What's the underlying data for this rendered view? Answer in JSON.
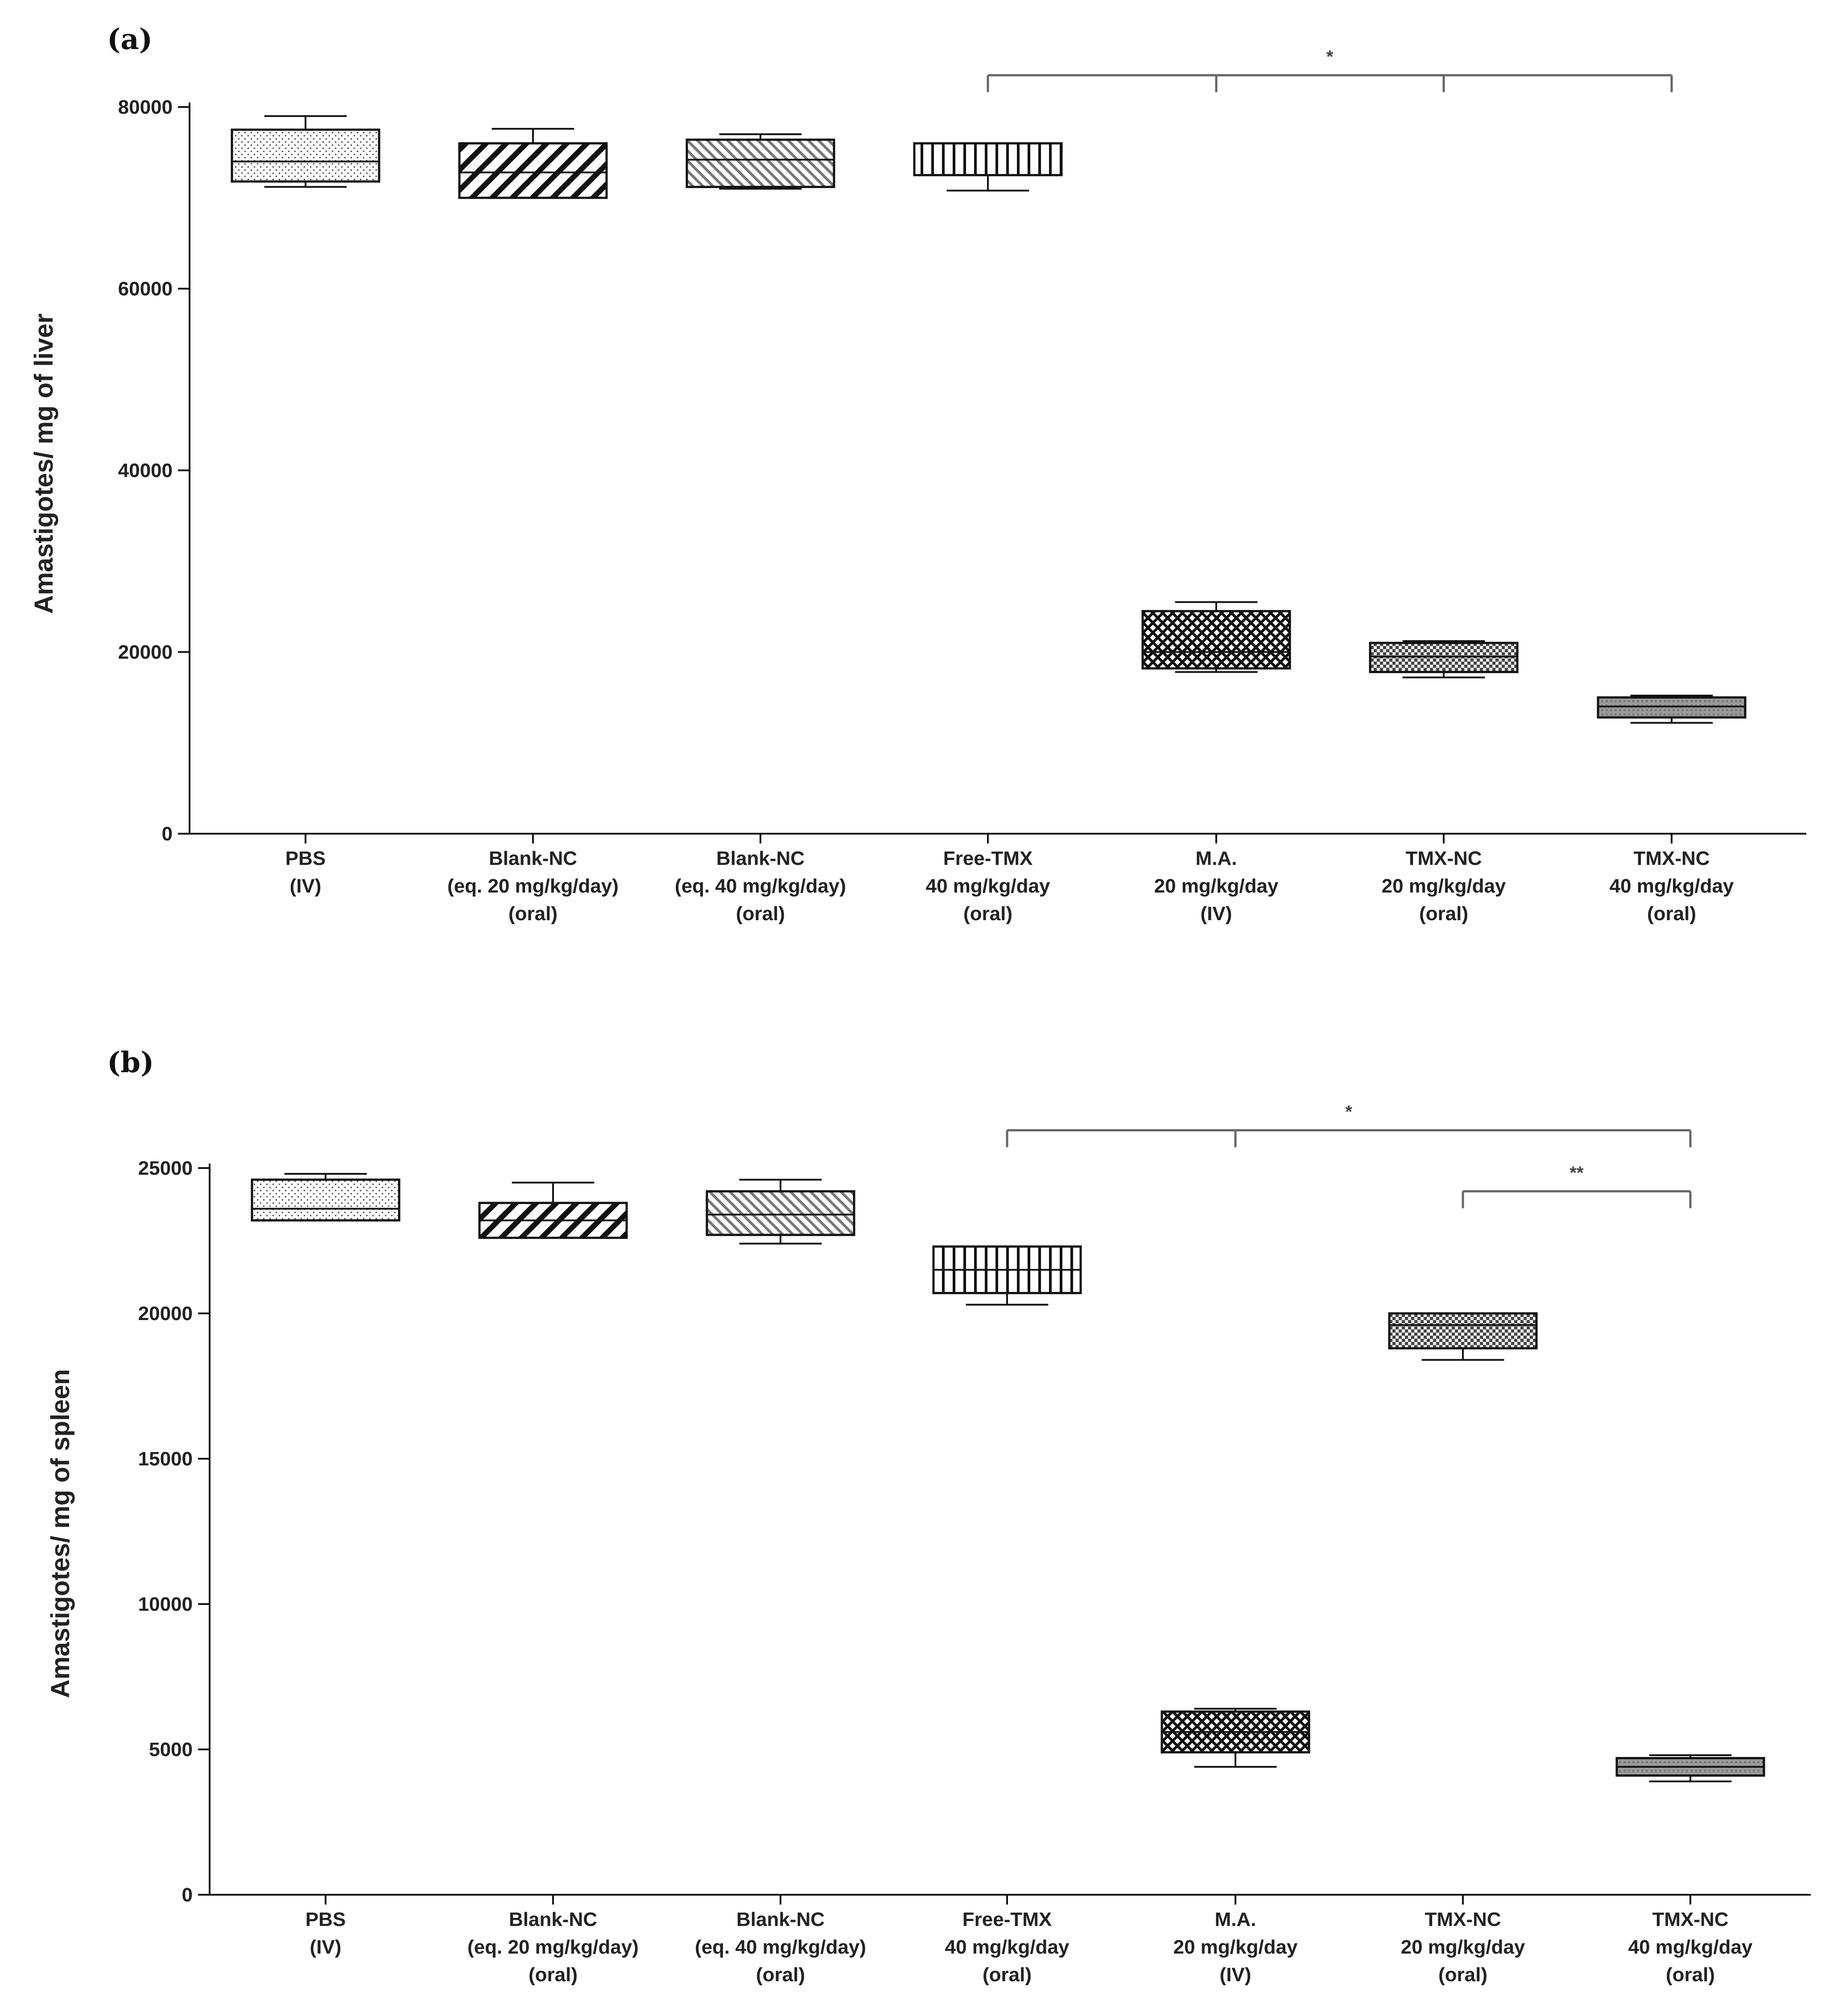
{
  "figure": {
    "background": "#ffffff",
    "ink_color": "#111111",
    "bracket_color": "#666666"
  },
  "chart_data": [
    {
      "type": "box",
      "panel": "(a)",
      "ylabel": "Amastigotes/ mg of liver",
      "xlabel": "",
      "ylim": [
        0,
        80000
      ],
      "yticks": [
        0,
        20000,
        40000,
        60000,
        80000
      ],
      "categories": [
        [
          "PBS",
          "(IV)"
        ],
        [
          "Blank-NC",
          "(eq. 20 mg/kg/day)",
          "(oral)"
        ],
        [
          "Blank-NC",
          "(eq. 40 mg/kg/day)",
          "(oral)"
        ],
        [
          "Free-TMX",
          "40 mg/kg/day",
          "(oral)"
        ],
        [
          "M.A.",
          "20 mg/kg/day",
          "(IV)"
        ],
        [
          "TMX-NC",
          "20 mg/kg/day",
          "(oral)"
        ],
        [
          "TMX-NC",
          "40 mg/kg/day",
          "(oral)"
        ]
      ],
      "patterns": [
        "dots",
        "diag-back",
        "diag-fwd",
        "vertical",
        "crosshatch",
        "checker",
        "solid-gray"
      ],
      "boxes": [
        {
          "min": 71200,
          "q1": 71800,
          "median": 74000,
          "q3": 77500,
          "max": 79000
        },
        {
          "min": 70000,
          "q1": 70000,
          "median": 72800,
          "q3": 76000,
          "max": 77600
        },
        {
          "min": 71000,
          "q1": 71200,
          "median": 74200,
          "q3": 76400,
          "max": 77000
        },
        {
          "min": 70800,
          "q1": 72500,
          "median": 72500,
          "q3": 76000,
          "max": 76000
        },
        {
          "min": 17800,
          "q1": 18200,
          "median": 20000,
          "q3": 24500,
          "max": 25500
        },
        {
          "min": 17200,
          "q1": 17800,
          "median": 19500,
          "q3": 21000,
          "max": 21200
        },
        {
          "min": 12200,
          "q1": 12800,
          "median": 14000,
          "q3": 15000,
          "max": 15200
        }
      ],
      "significance": [
        {
          "label": "*",
          "from": 3,
          "to": 6,
          "ticks": [
            3,
            4,
            5,
            6
          ],
          "level": 83500
        }
      ]
    },
    {
      "type": "box",
      "panel": "(b)",
      "ylabel": "Amastigotes/ mg of spleen",
      "xlabel": "",
      "ylim": [
        0,
        25000
      ],
      "yticks": [
        0,
        5000,
        10000,
        15000,
        20000,
        25000
      ],
      "categories": [
        [
          "PBS",
          "(IV)"
        ],
        [
          "Blank-NC",
          "(eq. 20 mg/kg/day)",
          "(oral)"
        ],
        [
          "Blank-NC",
          "(eq. 40 mg/kg/day)",
          "(oral)"
        ],
        [
          "Free-TMX",
          "40 mg/kg/day",
          "(oral)"
        ],
        [
          "M.A.",
          "20 mg/kg/day",
          "(IV)"
        ],
        [
          "TMX-NC",
          "20 mg/kg/day",
          "(oral)"
        ],
        [
          "TMX-NC",
          "40 mg/kg/day",
          "(oral)"
        ]
      ],
      "patterns": [
        "dots",
        "diag-back",
        "diag-fwd",
        "vertical",
        "crosshatch",
        "checker",
        "solid-gray"
      ],
      "boxes": [
        {
          "min": 23200,
          "q1": 23200,
          "median": 23600,
          "q3": 24600,
          "max": 24800
        },
        {
          "min": 22600,
          "q1": 22600,
          "median": 23200,
          "q3": 23800,
          "max": 24500
        },
        {
          "min": 22400,
          "q1": 22700,
          "median": 23400,
          "q3": 24200,
          "max": 24600
        },
        {
          "min": 20300,
          "q1": 20700,
          "median": 21500,
          "q3": 22300,
          "max": 22300
        },
        {
          "min": 4400,
          "q1": 4900,
          "median": 5600,
          "q3": 6300,
          "max": 6400
        },
        {
          "min": 18400,
          "q1": 18800,
          "median": 19600,
          "q3": 20000,
          "max": 20000
        },
        {
          "min": 3900,
          "q1": 4100,
          "median": 4400,
          "q3": 4700,
          "max": 4800
        }
      ],
      "significance": [
        {
          "label": "*",
          "from": 3,
          "to": 6,
          "ticks": [
            3,
            4,
            6
          ],
          "level": 26300
        },
        {
          "label": "**",
          "from": 5,
          "to": 6,
          "ticks": [
            5,
            6
          ],
          "level": 24200
        }
      ]
    }
  ]
}
